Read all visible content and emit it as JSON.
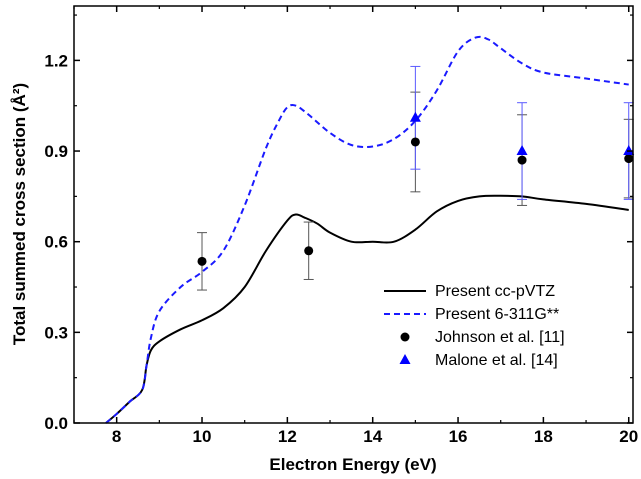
{
  "chart_data": {
    "type": "line",
    "xlabel": "Electron Energy (eV)",
    "ylabel": "Total summed cross section (Å²)",
    "xlim": [
      7,
      20.1
    ],
    "ylim": [
      0,
      1.38
    ],
    "xticks": [
      8,
      10,
      12,
      14,
      16,
      18,
      20
    ],
    "yticks": [
      0.0,
      0.3,
      0.6,
      0.9,
      1.2
    ],
    "xtick_labels": [
      "8",
      "10",
      "12",
      "14",
      "16",
      "18",
      "20"
    ],
    "ytick_labels": [
      "0.0",
      "0.3",
      "0.6",
      "0.9",
      "1.2"
    ],
    "grid": false,
    "legend_position": "lower-right",
    "series": [
      {
        "name": "Present  cc-pVTZ",
        "style": "solid",
        "color": "#000000",
        "x": [
          7.75,
          8.0,
          8.3,
          8.6,
          8.7,
          8.8,
          9.0,
          9.5,
          10.0,
          10.5,
          11.0,
          11.5,
          12.0,
          12.2,
          12.4,
          12.7,
          13.0,
          13.5,
          14.0,
          14.5,
          15.0,
          15.5,
          16.0,
          16.5,
          17.0,
          17.5,
          18.0,
          19.0,
          20.0
        ],
        "y": [
          0.0,
          0.03,
          0.07,
          0.11,
          0.19,
          0.24,
          0.27,
          0.31,
          0.34,
          0.38,
          0.45,
          0.57,
          0.67,
          0.69,
          0.68,
          0.66,
          0.63,
          0.6,
          0.6,
          0.6,
          0.64,
          0.7,
          0.735,
          0.75,
          0.752,
          0.75,
          0.74,
          0.725,
          0.705
        ]
      },
      {
        "name": "Present  6-311G**",
        "style": "dashed",
        "color": "#1a1aff",
        "x": [
          7.75,
          8.0,
          8.3,
          8.6,
          8.7,
          8.8,
          9.0,
          9.5,
          10.0,
          10.5,
          11.0,
          11.5,
          11.8,
          12.0,
          12.2,
          12.5,
          13.0,
          13.5,
          14.0,
          14.5,
          15.0,
          15.5,
          16.0,
          16.4,
          16.7,
          17.0,
          17.5,
          18.0,
          19.0,
          20.0
        ],
        "y": [
          0.0,
          0.03,
          0.07,
          0.11,
          0.19,
          0.28,
          0.37,
          0.45,
          0.5,
          0.57,
          0.72,
          0.91,
          1.0,
          1.045,
          1.05,
          1.02,
          0.96,
          0.92,
          0.915,
          0.94,
          1.0,
          1.1,
          1.23,
          1.275,
          1.27,
          1.24,
          1.19,
          1.16,
          1.14,
          1.12
        ]
      }
    ],
    "points": [
      {
        "name": "Johnson et al. [11]",
        "marker": "circle",
        "color": "#000000",
        "x": [
          10.0,
          12.5,
          15.0,
          17.5,
          20.0
        ],
        "y": [
          0.535,
          0.57,
          0.93,
          0.87,
          0.875
        ],
        "err": [
          0.095,
          0.095,
          0.165,
          0.15,
          0.13
        ]
      },
      {
        "name": "Malone et al. [14]",
        "marker": "triangle",
        "color": "#0000ff",
        "x": [
          15.0,
          17.5,
          20.0
        ],
        "y": [
          1.01,
          0.9,
          0.9
        ],
        "err": [
          0.17,
          0.16,
          0.16
        ]
      }
    ]
  }
}
